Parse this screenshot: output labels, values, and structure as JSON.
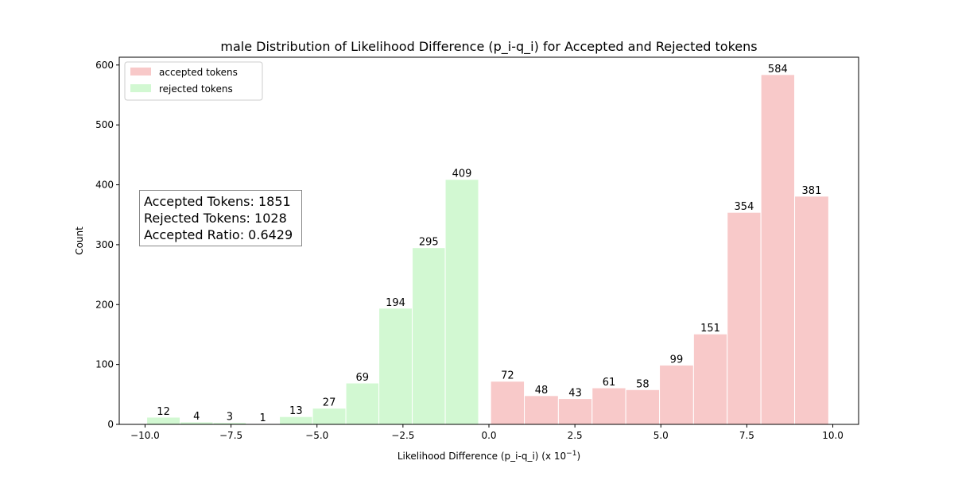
{
  "chart_data": {
    "type": "bar",
    "title": "male Distribution of Likelihood Difference (p_i-q_i) for Accepted and Rejected tokens",
    "xlabel_main": "Likelihood Difference (p_i-q_i) (x 10",
    "xlabel_sup": "−1",
    "xlabel_end": ")",
    "ylabel": "Count",
    "xlim": [
      -10.75,
      10.75
    ],
    "ylim": [
      0,
      613
    ],
    "xticks": [
      -10.0,
      -7.5,
      -5.0,
      -2.5,
      0.0,
      2.5,
      5.0,
      7.5,
      10.0
    ],
    "xtick_labels": [
      "−10.0",
      "−7.5",
      "−5.0",
      "−2.5",
      "0.0",
      "2.5",
      "5.0",
      "7.5",
      "10.0"
    ],
    "yticks": [
      0,
      100,
      200,
      300,
      400,
      500,
      600
    ],
    "ytick_labels": [
      "0",
      "100",
      "200",
      "300",
      "400",
      "500",
      "600"
    ],
    "legend_position": "top-left",
    "series": [
      {
        "name": "accepted tokens",
        "color": "#f8c9c9",
        "bins": [
          {
            "start": 0.05,
            "end": 1.03,
            "value": 72,
            "label": "72"
          },
          {
            "start": 1.03,
            "end": 2.02,
            "value": 48,
            "label": "48"
          },
          {
            "start": 2.02,
            "end": 3.0,
            "value": 43,
            "label": "43"
          },
          {
            "start": 3.0,
            "end": 3.98,
            "value": 61,
            "label": "61"
          },
          {
            "start": 3.98,
            "end": 4.96,
            "value": 58,
            "label": "58"
          },
          {
            "start": 4.96,
            "end": 5.95,
            "value": 99,
            "label": "99"
          },
          {
            "start": 5.95,
            "end": 6.93,
            "value": 151,
            "label": "151"
          },
          {
            "start": 6.93,
            "end": 7.91,
            "value": 354,
            "label": "354"
          },
          {
            "start": 7.91,
            "end": 8.89,
            "value": 584,
            "label": "584"
          },
          {
            "start": 8.89,
            "end": 9.88,
            "value": 381,
            "label": "381"
          }
        ]
      },
      {
        "name": "rejected tokens",
        "color": "#d2f8d2",
        "bins": [
          {
            "start": -9.95,
            "end": -8.98,
            "value": 12,
            "label": "12"
          },
          {
            "start": -8.98,
            "end": -8.02,
            "value": 4,
            "label": "4"
          },
          {
            "start": -8.02,
            "end": -7.06,
            "value": 3,
            "label": "3"
          },
          {
            "start": -7.06,
            "end": -6.09,
            "value": 1,
            "label": "1"
          },
          {
            "start": -6.09,
            "end": -5.13,
            "value": 13,
            "label": "13"
          },
          {
            "start": -5.13,
            "end": -4.16,
            "value": 27,
            "label": "27"
          },
          {
            "start": -4.16,
            "end": -3.2,
            "value": 69,
            "label": "69"
          },
          {
            "start": -3.2,
            "end": -2.23,
            "value": 194,
            "label": "194"
          },
          {
            "start": -2.23,
            "end": -1.27,
            "value": 295,
            "label": "295"
          },
          {
            "start": -1.27,
            "end": -0.3,
            "value": 409,
            "label": "409"
          }
        ]
      }
    ],
    "annotation": {
      "accepted_tokens": "Accepted Tokens: 1851",
      "rejected_tokens": "Rejected Tokens: 1028",
      "accepted_ratio": "Accepted Ratio: 0.6429"
    }
  }
}
